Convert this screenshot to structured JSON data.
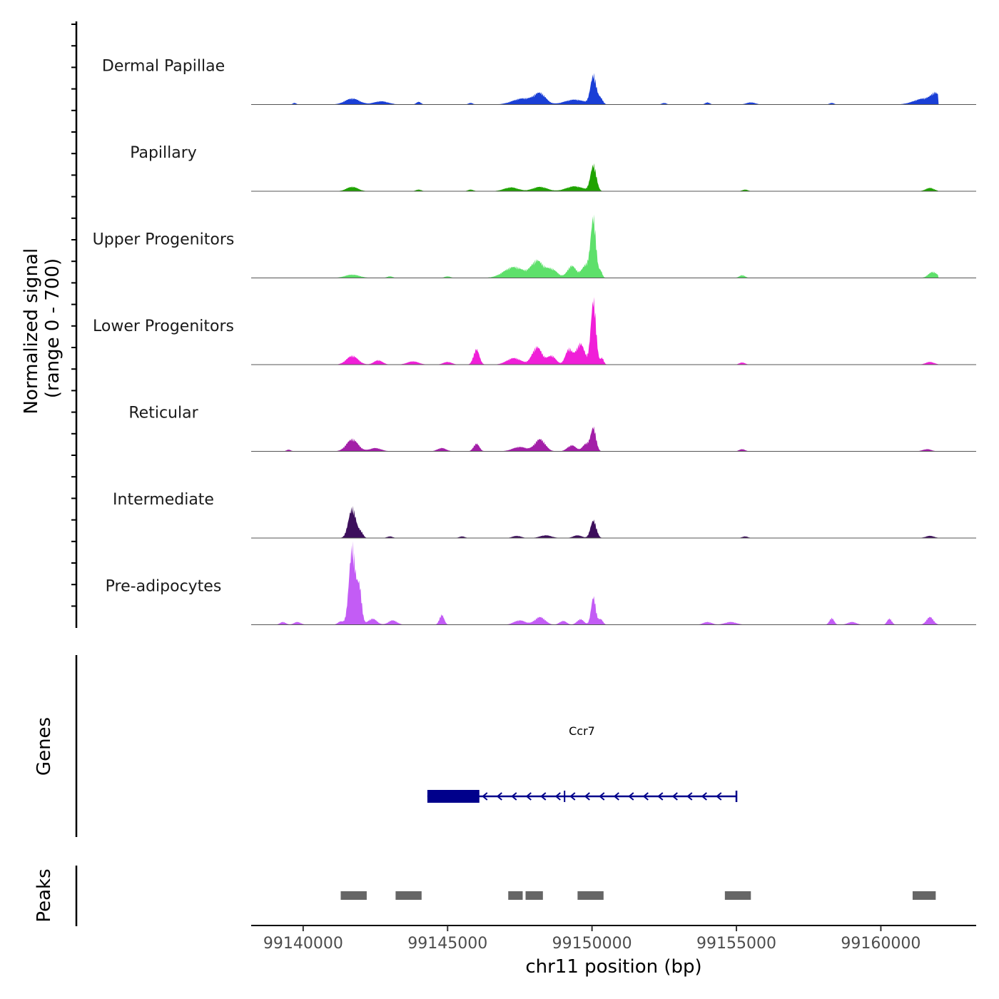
{
  "chart_data": {
    "type": "area",
    "chromosome": "chr11",
    "xlabel": "chr11 position (bp)",
    "ylabel": "Normalized signal\n(range 0 - 700)",
    "ylabel_lines": [
      "Normalized signal",
      "(range 0 - 700)"
    ],
    "ylim": [
      0,
      700
    ],
    "xlim": [
      99138200,
      99163300
    ],
    "x_ticks": [
      99140000,
      99145000,
      99150000,
      99155000,
      99160000
    ],
    "x_tick_labels": [
      "99140000",
      "99145000",
      "99150000",
      "99155000",
      "99160000"
    ],
    "region_start": 99139100,
    "region_end": 99162000,
    "series": [
      {
        "name": "Dermal Papillae",
        "color": "#1a3fd6",
        "peaks": [
          {
            "pos": 99139700,
            "height": 15,
            "width": 60
          },
          {
            "pos": 99141700,
            "height": 55,
            "width": 250
          },
          {
            "pos": 99142700,
            "height": 30,
            "width": 250
          },
          {
            "pos": 99144000,
            "height": 25,
            "width": 80
          },
          {
            "pos": 99145800,
            "height": 15,
            "width": 80
          },
          {
            "pos": 99147600,
            "height": 55,
            "width": 350
          },
          {
            "pos": 99148200,
            "height": 95,
            "width": 200
          },
          {
            "pos": 99149400,
            "height": 45,
            "width": 350
          },
          {
            "pos": 99150050,
            "height": 260,
            "width": 100
          },
          {
            "pos": 99150300,
            "height": 55,
            "width": 80
          },
          {
            "pos": 99152500,
            "height": 15,
            "width": 80
          },
          {
            "pos": 99154000,
            "height": 20,
            "width": 80
          },
          {
            "pos": 99155500,
            "height": 20,
            "width": 150
          },
          {
            "pos": 99158300,
            "height": 15,
            "width": 80
          },
          {
            "pos": 99161500,
            "height": 55,
            "width": 350
          },
          {
            "pos": 99161900,
            "height": 80,
            "width": 150
          }
        ]
      },
      {
        "name": "Papillary",
        "color": "#1fa300",
        "peaks": [
          {
            "pos": 99141700,
            "height": 40,
            "width": 200
          },
          {
            "pos": 99144000,
            "height": 15,
            "width": 100
          },
          {
            "pos": 99145800,
            "height": 15,
            "width": 100
          },
          {
            "pos": 99147200,
            "height": 35,
            "width": 250
          },
          {
            "pos": 99148200,
            "height": 40,
            "width": 250
          },
          {
            "pos": 99149400,
            "height": 45,
            "width": 300
          },
          {
            "pos": 99150050,
            "height": 235,
            "width": 100
          },
          {
            "pos": 99155300,
            "height": 15,
            "width": 100
          },
          {
            "pos": 99161700,
            "height": 30,
            "width": 150
          }
        ]
      },
      {
        "name": "Upper Progenitors",
        "color": "#5ee06b",
        "peaks": [
          {
            "pos": 99141700,
            "height": 30,
            "width": 250
          },
          {
            "pos": 99143000,
            "height": 15,
            "width": 100
          },
          {
            "pos": 99145000,
            "height": 15,
            "width": 100
          },
          {
            "pos": 99147300,
            "height": 100,
            "width": 350
          },
          {
            "pos": 99148100,
            "height": 150,
            "width": 200
          },
          {
            "pos": 99148600,
            "height": 80,
            "width": 200
          },
          {
            "pos": 99149300,
            "height": 110,
            "width": 150
          },
          {
            "pos": 99149800,
            "height": 120,
            "width": 150
          },
          {
            "pos": 99150050,
            "height": 520,
            "width": 90
          },
          {
            "pos": 99150300,
            "height": 60,
            "width": 60
          },
          {
            "pos": 99155200,
            "height": 25,
            "width": 100
          },
          {
            "pos": 99161800,
            "height": 55,
            "width": 150
          }
        ]
      },
      {
        "name": "Lower Progenitors",
        "color": "#f01fd8",
        "peaks": [
          {
            "pos": 99141700,
            "height": 80,
            "width": 200
          },
          {
            "pos": 99142600,
            "height": 40,
            "width": 150
          },
          {
            "pos": 99143800,
            "height": 30,
            "width": 200
          },
          {
            "pos": 99145000,
            "height": 25,
            "width": 150
          },
          {
            "pos": 99146000,
            "height": 140,
            "width": 100
          },
          {
            "pos": 99147300,
            "height": 60,
            "width": 250
          },
          {
            "pos": 99148100,
            "height": 160,
            "width": 170
          },
          {
            "pos": 99148600,
            "height": 80,
            "width": 150
          },
          {
            "pos": 99149200,
            "height": 140,
            "width": 120
          },
          {
            "pos": 99149600,
            "height": 190,
            "width": 150
          },
          {
            "pos": 99150050,
            "height": 580,
            "width": 90
          },
          {
            "pos": 99150350,
            "height": 60,
            "width": 60
          },
          {
            "pos": 99155200,
            "height": 20,
            "width": 100
          },
          {
            "pos": 99161700,
            "height": 25,
            "width": 150
          }
        ]
      },
      {
        "name": "Reticular",
        "color": "#a31fa8",
        "peaks": [
          {
            "pos": 99139500,
            "height": 15,
            "width": 80
          },
          {
            "pos": 99141700,
            "height": 110,
            "width": 200
          },
          {
            "pos": 99142500,
            "height": 30,
            "width": 200
          },
          {
            "pos": 99144800,
            "height": 30,
            "width": 150
          },
          {
            "pos": 99146000,
            "height": 70,
            "width": 100
          },
          {
            "pos": 99147500,
            "height": 40,
            "width": 250
          },
          {
            "pos": 99148200,
            "height": 110,
            "width": 180
          },
          {
            "pos": 99149300,
            "height": 55,
            "width": 150
          },
          {
            "pos": 99149800,
            "height": 70,
            "width": 120
          },
          {
            "pos": 99150050,
            "height": 210,
            "width": 90
          },
          {
            "pos": 99155200,
            "height": 20,
            "width": 100
          },
          {
            "pos": 99161600,
            "height": 20,
            "width": 150
          }
        ]
      },
      {
        "name": "Intermediate",
        "color": "#3d0f5c",
        "peaks": [
          {
            "pos": 99141700,
            "height": 270,
            "width": 130
          },
          {
            "pos": 99142000,
            "height": 50,
            "width": 80
          },
          {
            "pos": 99143000,
            "height": 15,
            "width": 100
          },
          {
            "pos": 99145500,
            "height": 15,
            "width": 100
          },
          {
            "pos": 99147400,
            "height": 20,
            "width": 150
          },
          {
            "pos": 99148400,
            "height": 25,
            "width": 200
          },
          {
            "pos": 99149500,
            "height": 25,
            "width": 150
          },
          {
            "pos": 99150050,
            "height": 160,
            "width": 100
          },
          {
            "pos": 99155300,
            "height": 15,
            "width": 100
          },
          {
            "pos": 99161700,
            "height": 20,
            "width": 150
          }
        ]
      },
      {
        "name": "Pre-adipocytes",
        "color": "#c35cf5",
        "peaks": [
          {
            "pos": 99139300,
            "height": 25,
            "width": 100
          },
          {
            "pos": 99139800,
            "height": 25,
            "width": 120
          },
          {
            "pos": 99141300,
            "height": 30,
            "width": 100
          },
          {
            "pos": 99141700,
            "height": 700,
            "width": 110
          },
          {
            "pos": 99141950,
            "height": 320,
            "width": 80
          },
          {
            "pos": 99142400,
            "height": 55,
            "width": 150
          },
          {
            "pos": 99143100,
            "height": 40,
            "width": 150
          },
          {
            "pos": 99144800,
            "height": 90,
            "width": 80
          },
          {
            "pos": 99147500,
            "height": 40,
            "width": 200
          },
          {
            "pos": 99148200,
            "height": 70,
            "width": 180
          },
          {
            "pos": 99149000,
            "height": 35,
            "width": 120
          },
          {
            "pos": 99149600,
            "height": 50,
            "width": 120
          },
          {
            "pos": 99150050,
            "height": 250,
            "width": 80
          },
          {
            "pos": 99150300,
            "height": 50,
            "width": 80
          },
          {
            "pos": 99154000,
            "height": 25,
            "width": 150
          },
          {
            "pos": 99154800,
            "height": 25,
            "width": 200
          },
          {
            "pos": 99158300,
            "height": 60,
            "width": 80
          },
          {
            "pos": 99159000,
            "height": 25,
            "width": 150
          },
          {
            "pos": 99160300,
            "height": 55,
            "width": 80
          },
          {
            "pos": 99161700,
            "height": 70,
            "width": 120
          }
        ]
      }
    ],
    "genes": [
      {
        "name": "Ccr7",
        "strand": "-",
        "start": 99144300,
        "end": 99155000,
        "thick_start": 99144300,
        "thick_end": 99146100,
        "exon_marks": [
          99149050
        ],
        "color": "#00008b"
      }
    ],
    "peaks_track": [
      [
        99141300,
        99142200
      ],
      [
        99143200,
        99144100
      ],
      [
        99147100,
        99147600
      ],
      [
        99147700,
        99148300
      ],
      [
        99149500,
        99150400
      ],
      [
        99154600,
        99155500
      ],
      [
        99161100,
        99161900
      ]
    ],
    "peaks_color": "#666666",
    "panel_labels": {
      "genes": "Genes",
      "peaks": "Peaks"
    }
  }
}
